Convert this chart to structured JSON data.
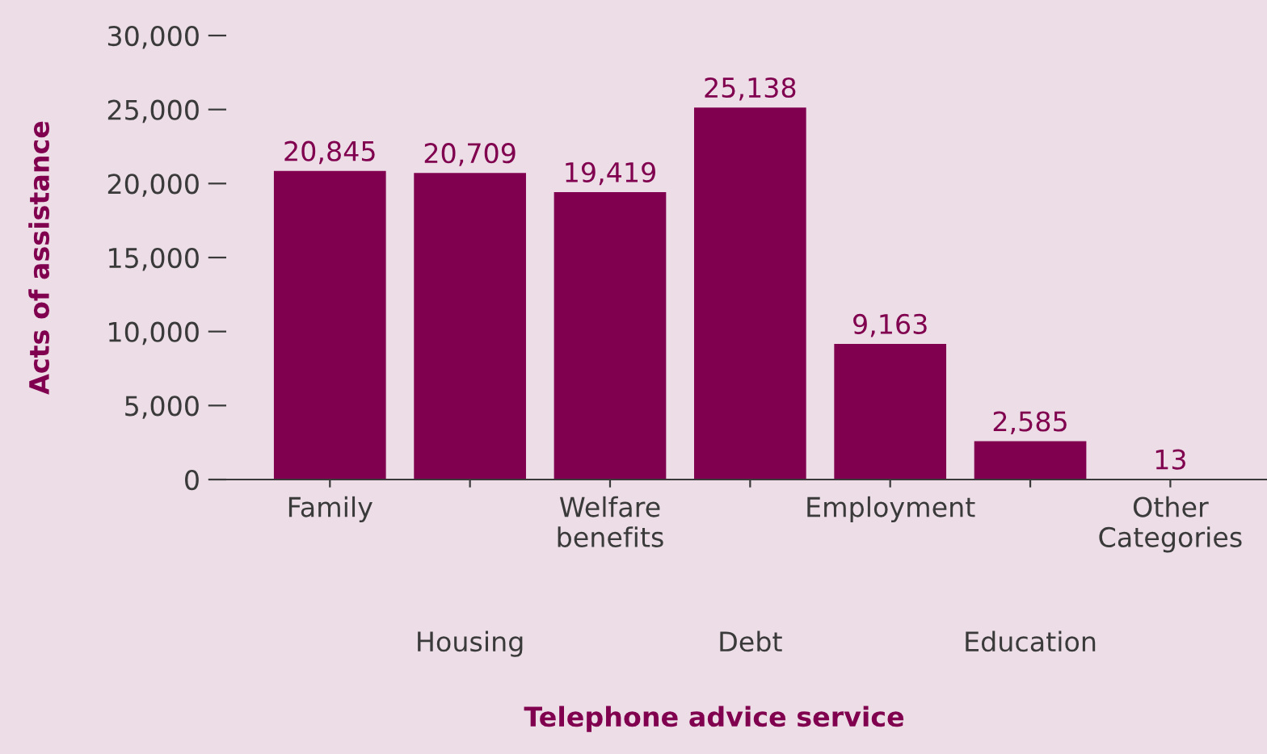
{
  "chart_data": {
    "type": "bar",
    "xlabel": "Telephone advice service",
    "ylabel": "Acts of assistance",
    "categories": [
      "Family",
      "Housing",
      "Welfare\nbenefits",
      "Debt",
      "Employment",
      "Education",
      "Other\nCategories"
    ],
    "values": [
      20845,
      20709,
      19419,
      25138,
      9163,
      2585,
      13
    ],
    "value_labels": [
      "20,845",
      "20,709",
      "19,419",
      "25,138",
      "9,163",
      "2,585",
      "13"
    ],
    "color": "#80004f",
    "ylim": [
      0,
      30000
    ],
    "yticks": [
      {
        "value": 0,
        "label": "0"
      },
      {
        "value": 5000,
        "label": "5,000"
      },
      {
        "value": 10000,
        "label": "10,000"
      },
      {
        "value": 15000,
        "label": "15,000"
      },
      {
        "value": 20000,
        "label": "20,000"
      },
      {
        "value": 25000,
        "label": "25,000"
      },
      {
        "value": 30000,
        "label": "30,000"
      }
    ],
    "grid": false,
    "legend": false
  }
}
